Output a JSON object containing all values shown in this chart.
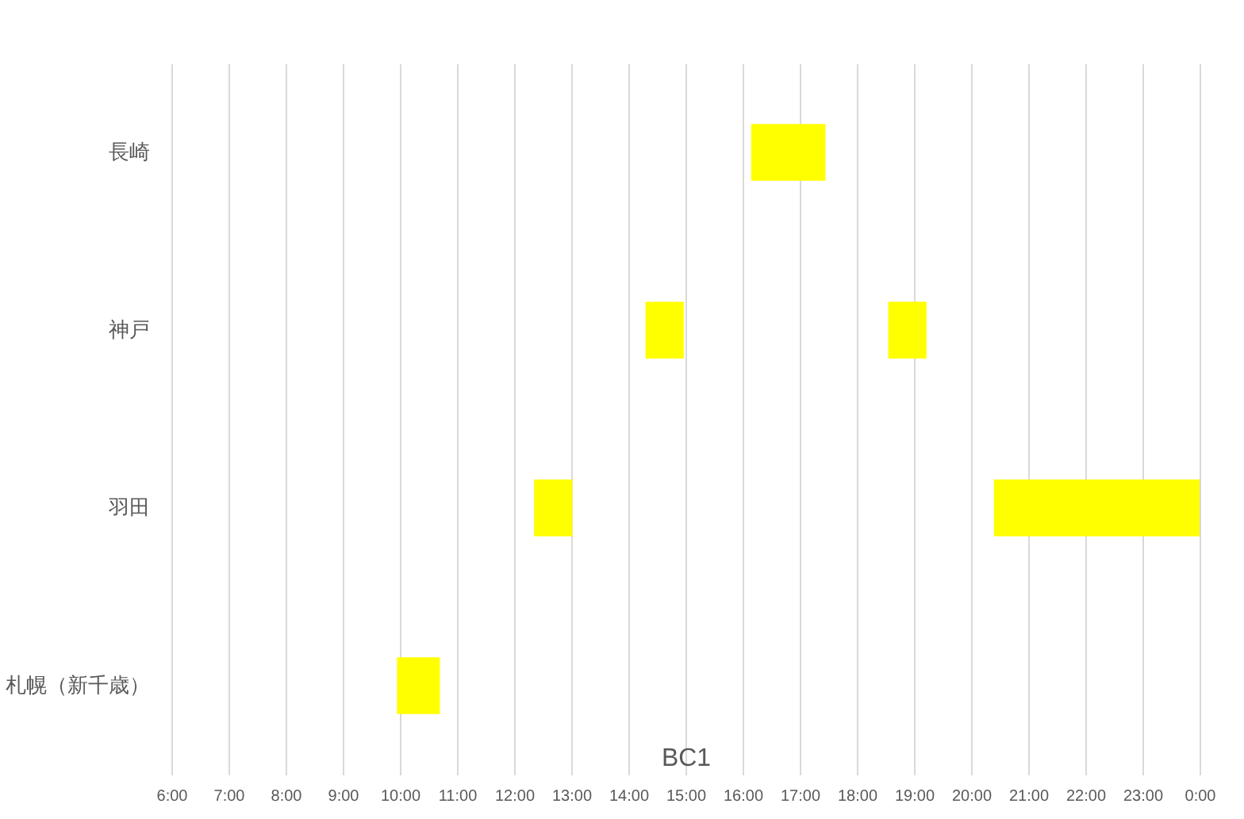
{
  "chart_data": {
    "type": "bar",
    "orientation": "horizontal",
    "xlabel": "BC1",
    "categories": [
      "長崎",
      "神戸",
      "羽田",
      "札幌（新千歳）"
    ],
    "series": [
      {
        "color": "#ffff00",
        "values": [
          1.3,
          0.67,
          0.67,
          0.75
        ],
        "base": [
          16.15,
          14.3,
          12.35,
          9.95
        ]
      },
      {
        "color": "#ffff00",
        "values": [
          null,
          0.67,
          3.6,
          null
        ],
        "base": [
          null,
          18.55,
          20.4,
          null
        ]
      }
    ],
    "xlim": [
      6,
      24
    ],
    "xticks": [
      {
        "value": 6,
        "label": "6:00"
      },
      {
        "value": 7,
        "label": "7:00"
      },
      {
        "value": 8,
        "label": "8:00"
      },
      {
        "value": 9,
        "label": "9:00"
      },
      {
        "value": 10,
        "label": "10:00"
      },
      {
        "value": 11,
        "label": "11:00"
      },
      {
        "value": 12,
        "label": "12:00"
      },
      {
        "value": 13,
        "label": "13:00"
      },
      {
        "value": 14,
        "label": "14:00"
      },
      {
        "value": 15,
        "label": "15:00"
      },
      {
        "value": 16,
        "label": "16:00"
      },
      {
        "value": 17,
        "label": "17:00"
      },
      {
        "value": 18,
        "label": "18:00"
      },
      {
        "value": 19,
        "label": "19:00"
      },
      {
        "value": 20,
        "label": "20:00"
      },
      {
        "value": 21,
        "label": "21:00"
      },
      {
        "value": 22,
        "label": "22:00"
      },
      {
        "value": 23,
        "label": "23:00"
      },
      {
        "value": 24,
        "label": "0:00"
      }
    ],
    "grid": "x",
    "legend": false
  }
}
